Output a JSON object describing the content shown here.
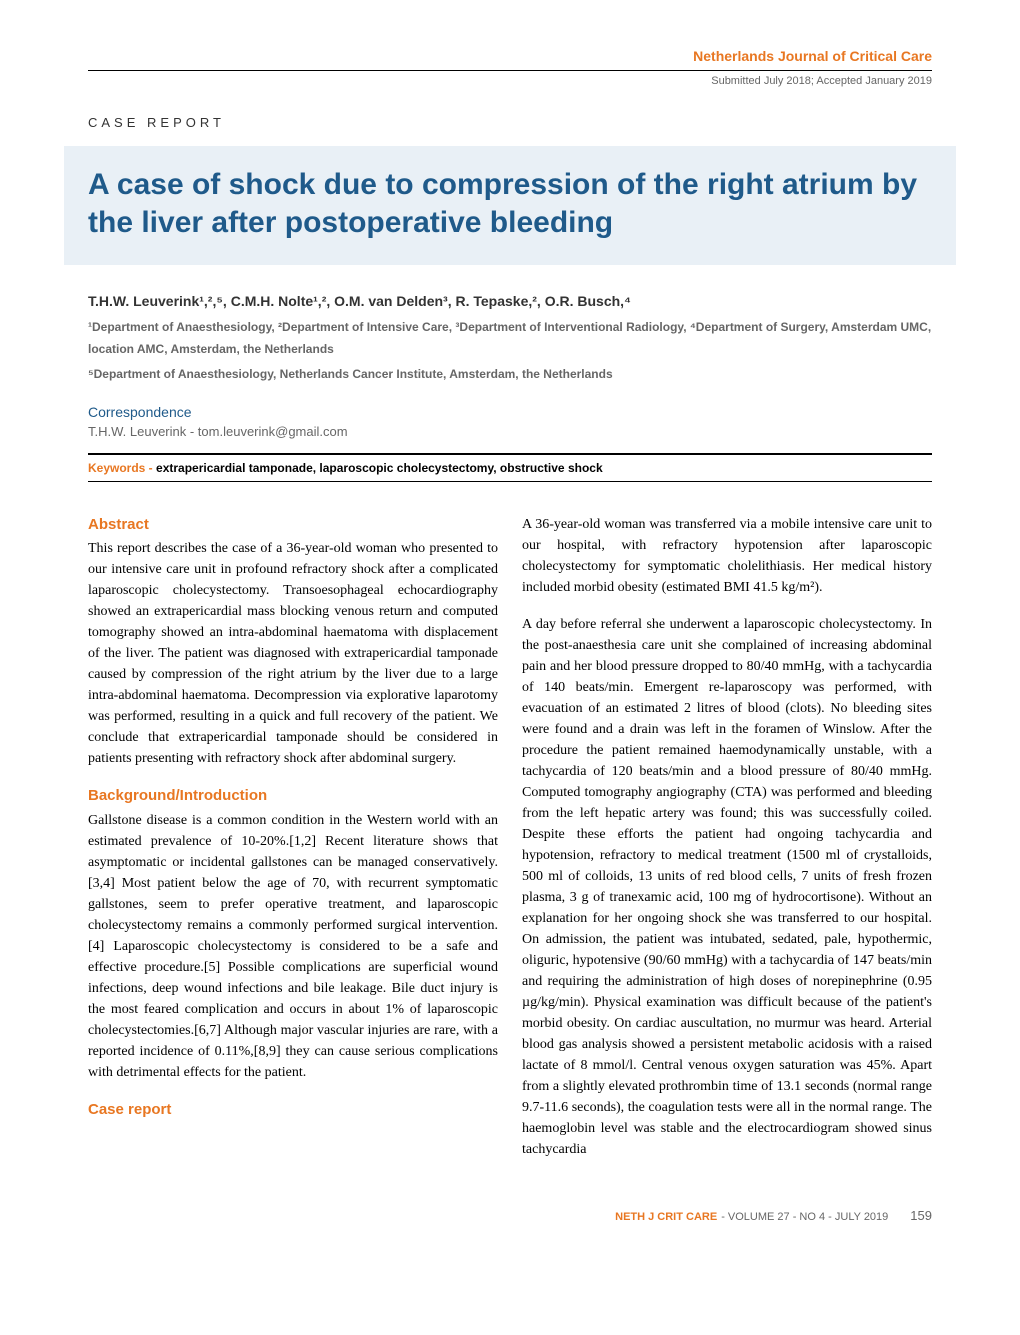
{
  "header": {
    "journal_name": "Netherlands Journal of Critical Care",
    "submission_info": "Submitted July 2018; Accepted January 2019"
  },
  "article_type": "CASE REPORT",
  "title": "A case of shock due to compression of the right atrium by the liver after postoperative bleeding",
  "authors": "T.H.W. Leuverink¹,²,⁵, C.M.H. Nolte¹,², O.M. van Delden³, R. Tepaske,², O.R. Busch,⁴",
  "affiliation1": "¹Department of Anaesthesiology, ²Department of Intensive Care, ³Department of Interventional Radiology, ⁴Department of Surgery, Amsterdam UMC, location AMC, Amsterdam, the Netherlands",
  "affiliation2": "⁵Department of Anaesthesiology, Netherlands Cancer Institute, Amsterdam, the Netherlands",
  "correspondence_label": "Correspondence",
  "correspondence": "T.H.W. Leuverink - tom.leuverink@gmail.com",
  "keywords_label": "Keywords - ",
  "keywords": "extrapericardial tamponade, laparoscopic cholecystectomy, obstructive shock",
  "sections": {
    "abstract_heading": "Abstract",
    "abstract": "This report describes the case of a 36-year-old woman who presented to our intensive care unit in profound refractory shock after a complicated laparoscopic cholecystectomy. Transoesophageal echocardiography showed an extrapericardial mass blocking venous return and computed tomography showed an intra-abdominal haematoma with displacement of the liver. The patient was diagnosed with extrapericardial tamponade caused by compression of the right atrium by the liver due to a large intra-abdominal haematoma. Decompression via explorative laparotomy was performed, resulting in a quick and full recovery of the patient. We conclude that extrapericardial tamponade should be considered in patients presenting with refractory shock after abdominal surgery.",
    "background_heading": "Background/Introduction",
    "background": "Gallstone disease is a common condition in the Western world with an estimated prevalence of 10-20%.[1,2] Recent literature shows that asymptomatic or incidental gallstones can be managed conservatively.[3,4] Most patient below the age of 70, with recurrent symptomatic gallstones, seem to prefer operative treatment, and laparoscopic cholecystectomy remains a commonly performed surgical intervention.[4] Laparoscopic cholecystectomy is considered to be a safe and effective procedure.[5] Possible complications are superficial wound infections, deep wound infections and bile leakage. Bile duct injury is the most feared complication and occurs in about 1% of laparoscopic cholecystectomies.[6,7] Although major vascular injuries are rare, with a reported incidence of 0.11%,[8,9] they can cause serious complications with detrimental effects for the patient.",
    "casereport_heading": "Case report",
    "casereport_p1": "A 36-year-old woman was transferred via a mobile intensive care unit to our hospital, with refractory hypotension after laparoscopic cholecystectomy for symptomatic cholelithiasis. Her medical history included morbid obesity (estimated BMI 41.5 kg/m²).",
    "casereport_p2": "A day before referral she underwent a laparoscopic cholecystectomy. In the post-anaesthesia care unit she complained of increasing abdominal pain and her blood pressure dropped to 80/40 mmHg, with a tachycardia of 140 beats/min. Emergent re-laparoscopy was performed, with evacuation of an estimated 2 litres of blood (clots). No bleeding sites were found and a drain was left in the foramen of Winslow. After the procedure the patient remained haemodynamically unstable, with a tachycardia of 120 beats/min and a blood pressure of 80/40 mmHg. Computed tomography angiography (CTA) was performed and bleeding from the left hepatic artery was found; this was successfully coiled. Despite these efforts the patient had ongoing tachycardia and hypotension, refractory to medical treatment (1500 ml of crystalloids, 500 ml of colloids, 13 units of red blood cells, 7 units of fresh frozen plasma, 3 g of tranexamic acid, 100 mg of hydrocortisone). Without an explanation for her ongoing shock she was transferred to our hospital. On admission, the patient was intubated, sedated, pale, hypothermic, oliguric, hypotensive (90/60 mmHg) with a tachycardia of 147 beats/min and requiring the administration of high doses of norepinephrine (0.95 µg/kg/min). Physical examination was difficult because of the patient's morbid obesity. On cardiac auscultation, no murmur was heard. Arterial blood gas analysis showed a persistent metabolic acidosis with a raised lactate of 8 mmol/l. Central venous oxygen saturation was 45%. Apart from a slightly elevated prothrombin time of 13.1 seconds (normal range 9.7-11.6 seconds), the coagulation tests were all in the normal range. The haemoglobin level was stable and the electrocardiogram showed sinus tachycardia"
  },
  "footer": {
    "journal": "NETH J CRIT CARE",
    "issue": " - VOLUME 27 - NO 4 - JULY 2019",
    "page": "159"
  },
  "colors": {
    "orange": "#e87722",
    "blue": "#1f5a8a",
    "title_bg": "#e9f0f6",
    "text_gray": "#666666"
  }
}
